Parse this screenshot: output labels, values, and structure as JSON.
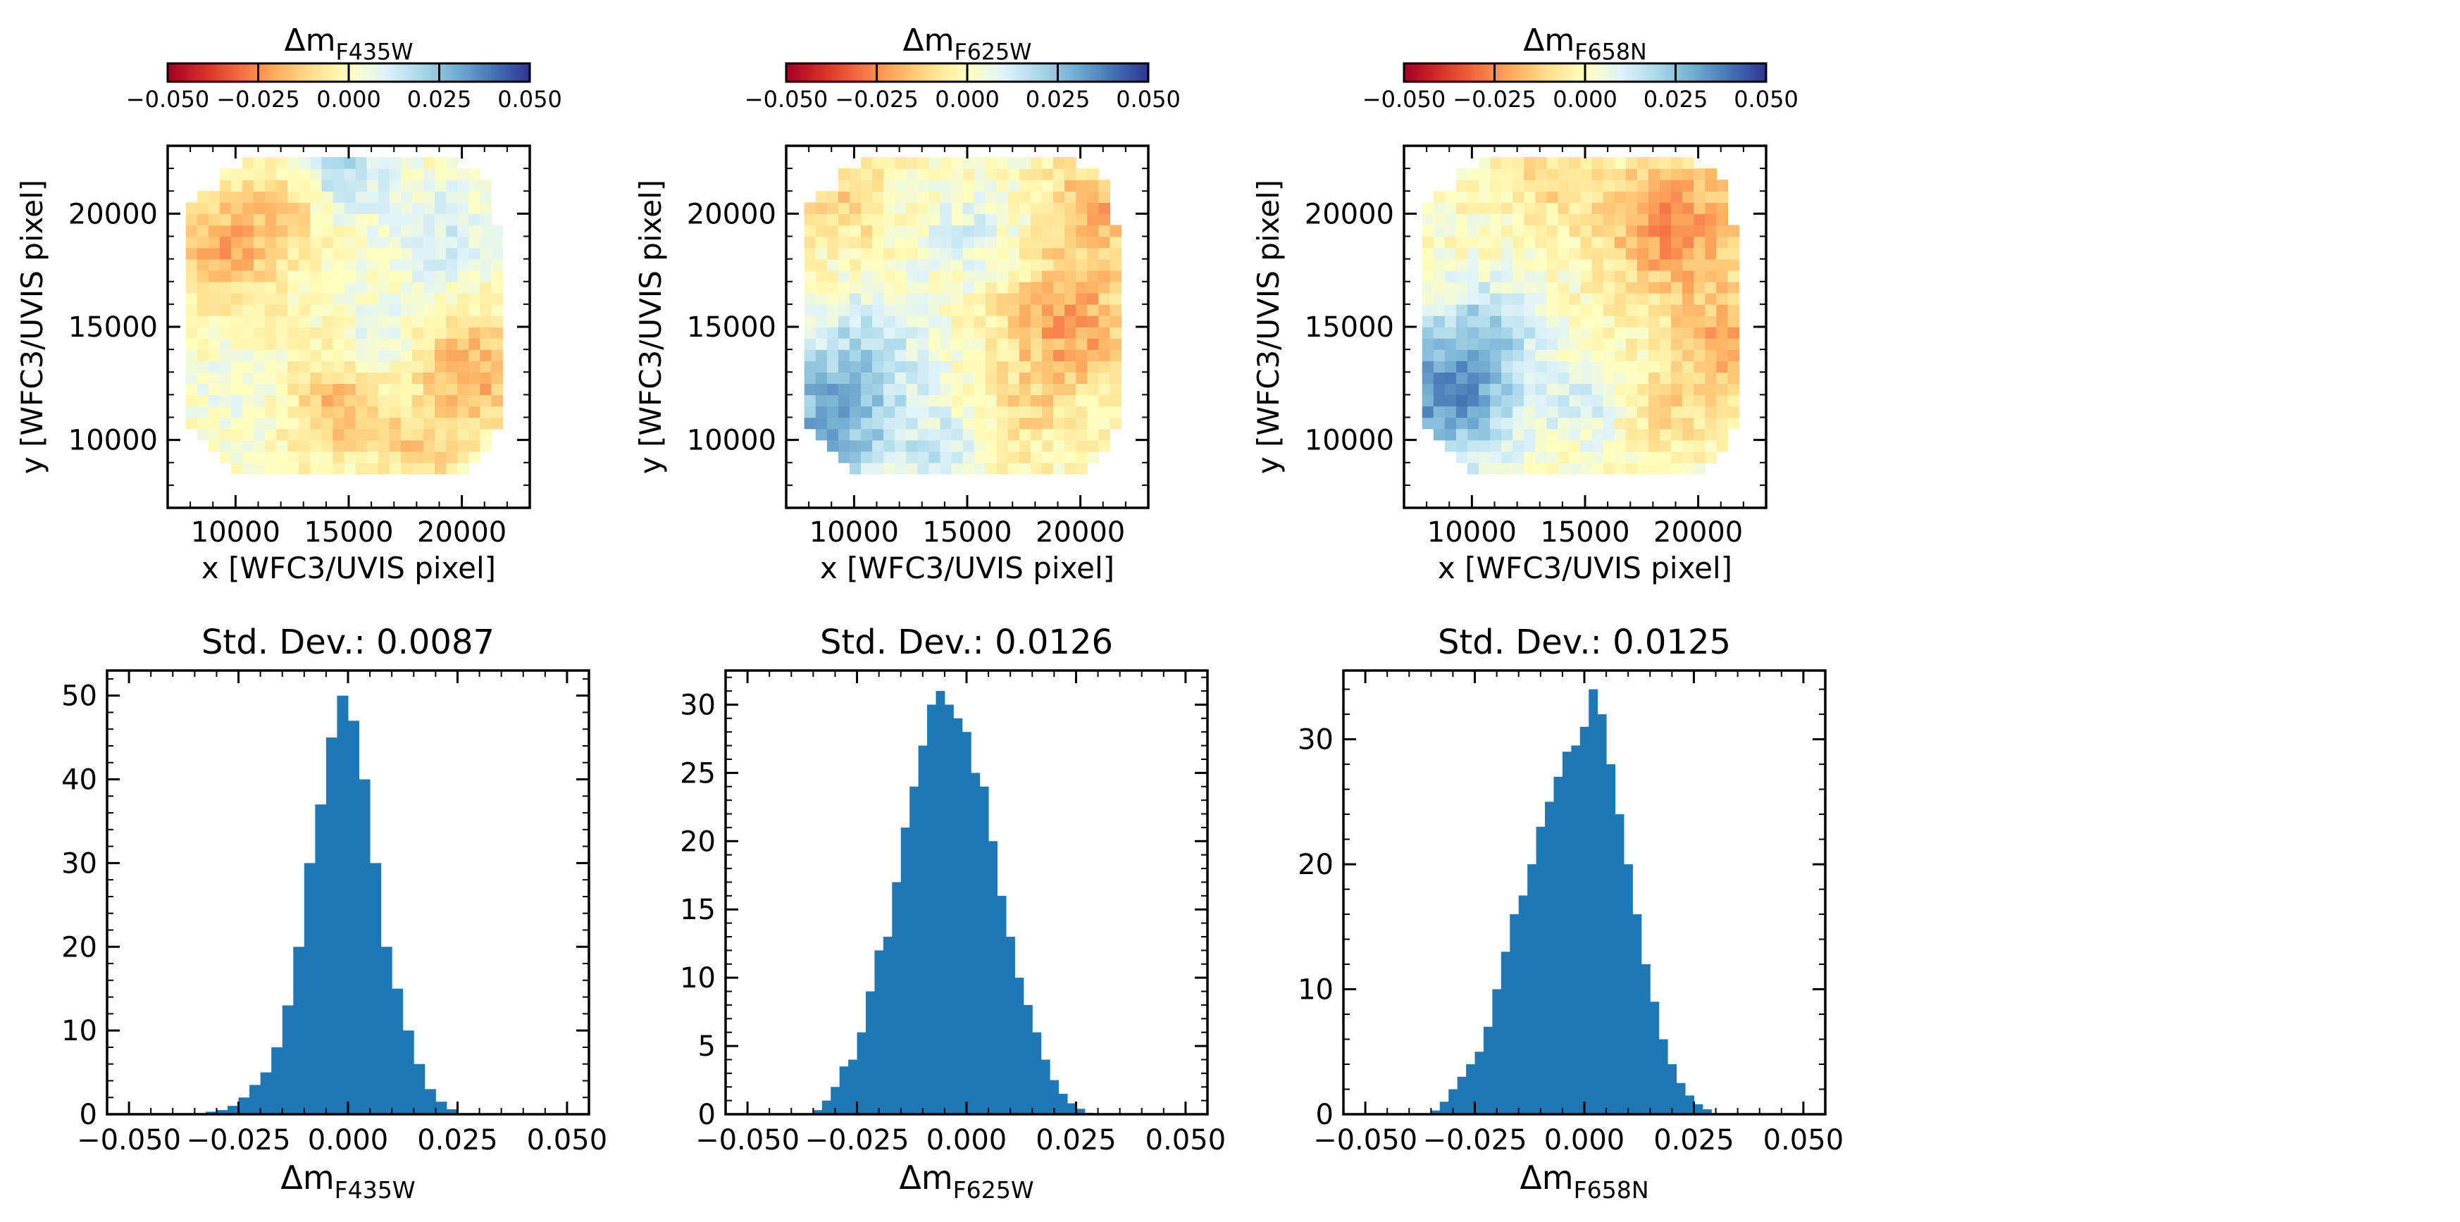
{
  "colors": {
    "hist_bar": "#1f77b4",
    "axis": "#000000"
  },
  "colormap": {
    "name": "RdYlBu",
    "stops": [
      "#a50026",
      "#d73027",
      "#f46d43",
      "#fdae61",
      "#fee090",
      "#ffffbf",
      "#e0f3f8",
      "#abd9e9",
      "#74add1",
      "#4575b4",
      "#313695"
    ]
  },
  "chart_data": [
    {
      "type": "heatmap",
      "panel": "map-f435w",
      "colorbar": {
        "title_symbol": "Δm",
        "title_sub": "F435W",
        "range": [
          -0.05,
          0.05
        ],
        "ticks": [
          "−0.050",
          "−0.025",
          "0.000",
          "0.025",
          "0.050"
        ]
      },
      "xlabel": "x [WFC3/UVIS pixel]",
      "ylabel": "y [WFC3/UVIS pixel]",
      "xlim": [
        7000,
        23000
      ],
      "ylim": [
        7000,
        23000
      ],
      "xticks": [
        "10000",
        "15000",
        "20000"
      ],
      "yticks": [
        "10000",
        "15000",
        "20000"
      ],
      "grid_origin": [
        7800,
        8000
      ],
      "grid_cell": 500,
      "grid_size": [
        30,
        30
      ],
      "blobs": [
        {
          "x": 9500,
          "y": 18500,
          "r": 2500,
          "v": -0.02
        },
        {
          "x": 12500,
          "y": 20500,
          "r": 1800,
          "v": -0.012
        },
        {
          "x": 14500,
          "y": 22000,
          "r": 2000,
          "v": 0.02
        },
        {
          "x": 19000,
          "y": 19000,
          "r": 2500,
          "v": 0.012
        },
        {
          "x": 20500,
          "y": 13000,
          "r": 2500,
          "v": -0.02
        },
        {
          "x": 14500,
          "y": 11500,
          "r": 2000,
          "v": -0.018
        },
        {
          "x": 16500,
          "y": 14500,
          "r": 1500,
          "v": 0.01
        },
        {
          "x": 18000,
          "y": 9500,
          "r": 1800,
          "v": -0.012
        },
        {
          "x": 10000,
          "y": 12000,
          "r": 2000,
          "v": 0.006
        }
      ],
      "noise_amp": 0.012
    },
    {
      "type": "heatmap",
      "panel": "map-f625w",
      "colorbar": {
        "title_symbol": "Δm",
        "title_sub": "F625W",
        "range": [
          -0.05,
          0.05
        ],
        "ticks": [
          "−0.050",
          "−0.025",
          "0.000",
          "0.025",
          "0.050"
        ]
      },
      "xlabel": "x [WFC3/UVIS pixel]",
      "ylabel": "y [WFC3/UVIS pixel]",
      "xlim": [
        7000,
        23000
      ],
      "ylim": [
        7000,
        23000
      ],
      "xticks": [
        "10000",
        "15000",
        "20000"
      ],
      "yticks": [
        "10000",
        "15000",
        "20000"
      ],
      "grid_origin": [
        7800,
        8000
      ],
      "grid_cell": 500,
      "grid_size": [
        30,
        30
      ],
      "blobs": [
        {
          "x": 9000,
          "y": 11000,
          "r": 3200,
          "v": 0.03
        },
        {
          "x": 11000,
          "y": 14500,
          "r": 2500,
          "v": 0.012
        },
        {
          "x": 19500,
          "y": 15000,
          "r": 3000,
          "v": -0.022
        },
        {
          "x": 21000,
          "y": 20500,
          "r": 2500,
          "v": -0.018
        },
        {
          "x": 9500,
          "y": 20500,
          "r": 2000,
          "v": -0.012
        },
        {
          "x": 15000,
          "y": 19000,
          "r": 2000,
          "v": 0.01
        },
        {
          "x": 14000,
          "y": 9500,
          "r": 1800,
          "v": 0.012
        },
        {
          "x": 17500,
          "y": 11000,
          "r": 1800,
          "v": -0.008
        }
      ],
      "noise_amp": 0.014
    },
    {
      "type": "heatmap",
      "panel": "map-f658n",
      "colorbar": {
        "title_symbol": "Δm",
        "title_sub": "F658N",
        "range": [
          -0.05,
          0.05
        ],
        "ticks": [
          "−0.050",
          "−0.025",
          "0.000",
          "0.025",
          "0.050"
        ]
      },
      "xlabel": "x [WFC3/UVIS pixel]",
      "ylabel": "y [WFC3/UVIS pixel]",
      "xlim": [
        7000,
        23000
      ],
      "ylim": [
        7000,
        23000
      ],
      "xticks": [
        "10000",
        "15000",
        "20000"
      ],
      "yticks": [
        "10000",
        "15000",
        "20000"
      ],
      "grid_origin": [
        7800,
        8000
      ],
      "grid_cell": 500,
      "grid_size": [
        30,
        30
      ],
      "blobs": [
        {
          "x": 8800,
          "y": 12000,
          "r": 3200,
          "v": 0.035
        },
        {
          "x": 11000,
          "y": 15000,
          "r": 2200,
          "v": 0.015
        },
        {
          "x": 19000,
          "y": 19500,
          "r": 3200,
          "v": -0.025
        },
        {
          "x": 21500,
          "y": 14000,
          "r": 2500,
          "v": -0.02
        },
        {
          "x": 13500,
          "y": 21500,
          "r": 1800,
          "v": -0.01
        },
        {
          "x": 15000,
          "y": 11500,
          "r": 1800,
          "v": 0.01
        },
        {
          "x": 18500,
          "y": 11000,
          "r": 1800,
          "v": -0.01
        }
      ],
      "noise_amp": 0.013
    },
    {
      "type": "bar",
      "panel": "hist-f435w",
      "title": "Std. Dev.: 0.0087",
      "xlabel_symbol": "Δm",
      "xlabel_sub": "F435W",
      "xlim": [
        -0.055,
        0.055
      ],
      "ylim": [
        0,
        53
      ],
      "xticks": [
        -0.05,
        -0.025,
        0,
        0.025,
        0.05
      ],
      "xtick_labels": [
        "−0.050",
        "−0.025",
        "0.000",
        "0.025",
        "0.050"
      ],
      "yticks": [
        0,
        10,
        20,
        30,
        40,
        50
      ],
      "ytick_labels": [
        "0",
        "10",
        "20",
        "30",
        "40",
        "50"
      ],
      "yminor": 2,
      "bin_start": -0.0325,
      "bin_width": 0.0025,
      "values": [
        0.3,
        0.5,
        1,
        2,
        3.5,
        5,
        8,
        13,
        20,
        30,
        37,
        45,
        50,
        47,
        40,
        30,
        20,
        15,
        10,
        6,
        3,
        1.5,
        0.6
      ]
    },
    {
      "type": "bar",
      "panel": "hist-f625w",
      "title": "Std. Dev.: 0.0126",
      "xlabel_symbol": "Δm",
      "xlabel_sub": "F625W",
      "xlim": [
        -0.055,
        0.055
      ],
      "ylim": [
        0,
        32.5
      ],
      "xticks": [
        -0.05,
        -0.025,
        0,
        0.025,
        0.05
      ],
      "xtick_labels": [
        "−0.050",
        "−0.025",
        "0.000",
        "0.025",
        "0.050"
      ],
      "yticks": [
        0,
        5,
        10,
        15,
        20,
        25,
        30
      ],
      "ytick_labels": [
        "0",
        "5",
        "10",
        "15",
        "20",
        "25",
        "30"
      ],
      "yminor": 1,
      "bin_start": -0.035,
      "bin_width": 0.002,
      "values": [
        0.3,
        1,
        2,
        3.5,
        4,
        6,
        9,
        12,
        13,
        17,
        21,
        24,
        27,
        30,
        31,
        30,
        29,
        28,
        25,
        24,
        20,
        16,
        13,
        10,
        8,
        6,
        4,
        2.5,
        1.5,
        0.8,
        0.4,
        0.1
      ]
    },
    {
      "type": "bar",
      "panel": "hist-f658n",
      "title": "Std. Dev.: 0.0125",
      "xlabel_symbol": "Δm",
      "xlabel_sub": "F658N",
      "xlim": [
        -0.055,
        0.055
      ],
      "ylim": [
        0,
        35.5
      ],
      "xticks": [
        -0.05,
        -0.025,
        0,
        0.025,
        0.05
      ],
      "xtick_labels": [
        "−0.050",
        "−0.025",
        "0.000",
        "0.025",
        "0.050"
      ],
      "yticks": [
        0,
        10,
        20,
        30
      ],
      "ytick_labels": [
        "0",
        "10",
        "20",
        "30"
      ],
      "yminor": 2,
      "bin_start": -0.035,
      "bin_width": 0.002,
      "values": [
        0.3,
        1,
        2,
        3,
        4,
        5,
        7,
        10,
        13,
        16,
        17.5,
        20,
        23,
        25,
        27,
        29,
        29.5,
        31,
        34,
        32,
        28,
        24,
        20,
        16,
        12,
        9,
        6,
        4,
        2.5,
        1.5,
        0.8,
        0.4
      ]
    }
  ]
}
